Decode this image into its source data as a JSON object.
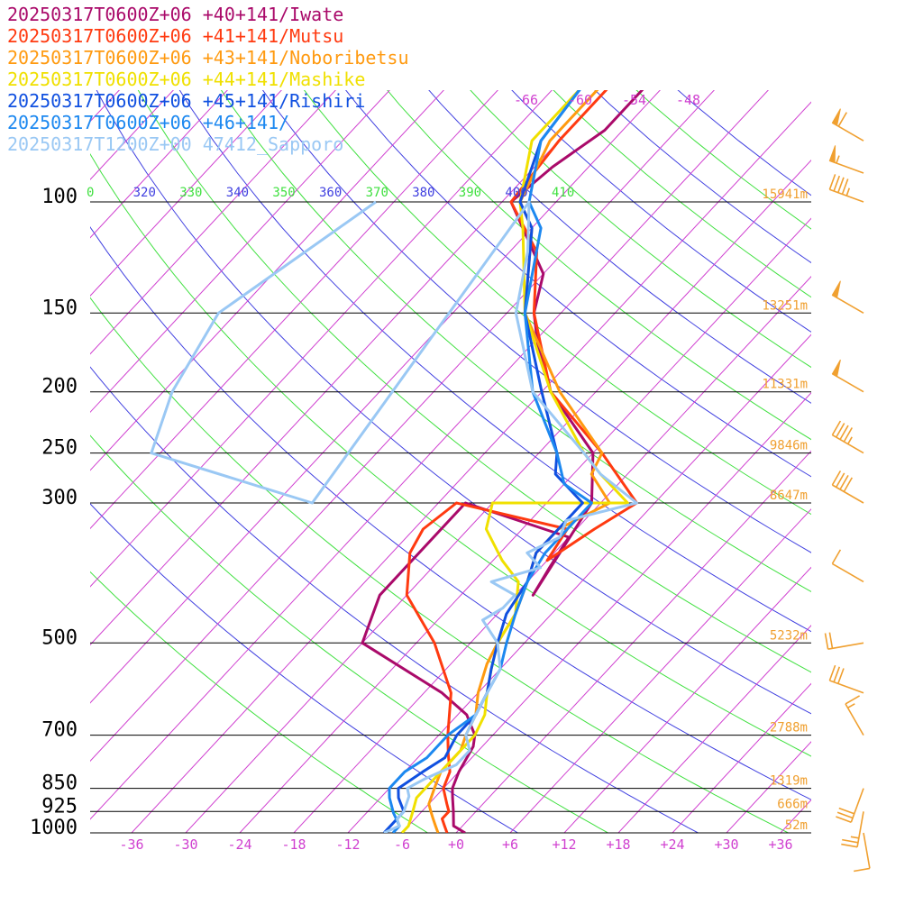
{
  "legend": [
    {
      "label": "20250317T0600Z+06 +40+141/Iwate",
      "color": "#aa0a6a"
    },
    {
      "label": "20250317T0600Z+06 +41+141/Mutsu",
      "color": "#ff3a10"
    },
    {
      "label": "20250317T0600Z+06 +43+141/Noboribetsu",
      "color": "#ff9a10"
    },
    {
      "label": "20250317T0600Z+06 +44+141/Mashike",
      "color": "#f0e000"
    },
    {
      "label": "20250317T0600Z+06 +45+141/Rishiri",
      "color": "#1050e0"
    },
    {
      "label": "20250317T0600Z+06 +46+141/",
      "color": "#1c88f0"
    },
    {
      "label": "20250317T1200Z+00 47412_Sapporo",
      "color": "#9ac8f4"
    }
  ],
  "chart_data": {
    "type": "line",
    "pressure_levels": [
      100,
      150,
      200,
      250,
      300,
      500,
      700,
      850,
      925,
      1000
    ],
    "height_labels": [
      {
        "p": 100,
        "label": "15941m"
      },
      {
        "p": 150,
        "label": "13251m"
      },
      {
        "p": 200,
        "label": "11331m"
      },
      {
        "p": 250,
        "label": "9846m"
      },
      {
        "p": 300,
        "label": "8647m"
      },
      {
        "p": 500,
        "label": "5232m"
      },
      {
        "p": 700,
        "label": "2788m"
      },
      {
        "p": 850,
        "label": "1319m"
      },
      {
        "p": 925,
        "label": "666m"
      },
      {
        "p": 1000,
        "label": "52m"
      }
    ],
    "temp_ticks": [
      "-36",
      "-30",
      "-24",
      "-18",
      "-12",
      "-6",
      "+0",
      "+6",
      "+12",
      "+18",
      "+24",
      "+30",
      "+36"
    ],
    "isotherm_top_labels": [
      "-66",
      "-60",
      "-54",
      "-48"
    ],
    "theta_labels": [
      {
        "value": "0",
        "color": "#40e040"
      },
      {
        "value": "320",
        "color": "#4040e0"
      },
      {
        "value": "330",
        "color": "#40e040"
      },
      {
        "value": "340",
        "color": "#4040e0"
      },
      {
        "value": "350",
        "color": "#40e040"
      },
      {
        "value": "360",
        "color": "#4040e0"
      },
      {
        "value": "370",
        "color": "#40e040"
      },
      {
        "value": "380",
        "color": "#4040e0"
      },
      {
        "value": "390",
        "color": "#40e040"
      },
      {
        "value": "400",
        "color": "#4040e0"
      },
      {
        "value": "410",
        "color": "#40e040"
      }
    ],
    "xlim": [
      -40,
      40
    ],
    "series": [
      {
        "color": "#aa0a6a",
        "points": [
          [
            1000,
            1
          ],
          [
            975,
            -1
          ],
          [
            925,
            -2.5
          ],
          [
            880,
            -4
          ],
          [
            850,
            -5
          ],
          [
            800,
            -6
          ],
          [
            730,
            -7
          ],
          [
            700,
            -8
          ],
          [
            650,
            -11
          ],
          [
            600,
            -16
          ],
          [
            500,
            -30
          ],
          [
            420,
            -33
          ],
          [
            380,
            -33
          ],
          [
            300,
            -33
          ],
          [
            340,
            -18
          ],
          [
            380,
            -17
          ],
          [
            420,
            -16
          ],
          [
            300,
            -19
          ],
          [
            250,
            -24
          ],
          [
            200,
            -35
          ],
          [
            170,
            -41
          ],
          [
            150,
            -45
          ],
          [
            130,
            -48
          ],
          [
            100,
            -59
          ],
          [
            88,
            -58
          ],
          [
            77,
            -56
          ],
          [
            65,
            -56
          ]
        ]
      },
      {
        "color": "#ff3a10",
        "points": [
          [
            1000,
            -1
          ],
          [
            975,
            -2
          ],
          [
            950,
            -3
          ],
          [
            925,
            -3
          ],
          [
            900,
            -4
          ],
          [
            850,
            -6
          ],
          [
            800,
            -7
          ],
          [
            750,
            -9
          ],
          [
            700,
            -11
          ],
          [
            600,
            -15
          ],
          [
            500,
            -22
          ],
          [
            420,
            -30
          ],
          [
            360,
            -34
          ],
          [
            330,
            -35
          ],
          [
            300,
            -34
          ],
          [
            330,
            -19
          ],
          [
            370,
            -18
          ],
          [
            330,
            -16
          ],
          [
            300,
            -14
          ],
          [
            250,
            -23
          ],
          [
            200,
            -35
          ],
          [
            150,
            -45
          ],
          [
            120,
            -51
          ],
          [
            100,
            -59
          ],
          [
            80,
            -60
          ],
          [
            66,
            -60
          ]
        ]
      },
      {
        "color": "#ff9a10",
        "points": [
          [
            1000,
            -2
          ],
          [
            975,
            -3
          ],
          [
            950,
            -4
          ],
          [
            925,
            -5
          ],
          [
            900,
            -6
          ],
          [
            850,
            -7
          ],
          [
            800,
            -8
          ],
          [
            740,
            -8
          ],
          [
            700,
            -9
          ],
          [
            650,
            -10
          ],
          [
            600,
            -12
          ],
          [
            540,
            -14
          ],
          [
            500,
            -15
          ],
          [
            450,
            -16
          ],
          [
            400,
            -18
          ],
          [
            360,
            -20
          ],
          [
            330,
            -20
          ],
          [
            300,
            -17
          ],
          [
            270,
            -22
          ],
          [
            250,
            -23
          ],
          [
            200,
            -34
          ],
          [
            150,
            -46
          ],
          [
            110,
            -54
          ],
          [
            100,
            -58
          ],
          [
            80,
            -61
          ],
          [
            66,
            -61
          ]
        ]
      },
      {
        "color": "#f0e000",
        "points": [
          [
            1000,
            -6
          ],
          [
            975,
            -6
          ],
          [
            925,
            -7
          ],
          [
            880,
            -8
          ],
          [
            850,
            -8
          ],
          [
            800,
            -8
          ],
          [
            740,
            -8
          ],
          [
            700,
            -8
          ],
          [
            650,
            -9
          ],
          [
            600,
            -11
          ],
          [
            550,
            -13
          ],
          [
            500,
            -15
          ],
          [
            450,
            -16
          ],
          [
            400,
            -19
          ],
          [
            370,
            -23
          ],
          [
            330,
            -28
          ],
          [
            300,
            -30
          ],
          [
            300,
            -15
          ],
          [
            270,
            -21
          ],
          [
            250,
            -25
          ],
          [
            200,
            -35
          ],
          [
            150,
            -46
          ],
          [
            110,
            -55
          ],
          [
            100,
            -58
          ],
          [
            80,
            -63
          ],
          [
            66,
            -63
          ]
        ]
      },
      {
        "color": "#1050e0",
        "points": [
          [
            1000,
            -8
          ],
          [
            975,
            -8
          ],
          [
            925,
            -8
          ],
          [
            880,
            -10
          ],
          [
            850,
            -11
          ],
          [
            800,
            -10
          ],
          [
            760,
            -9
          ],
          [
            700,
            -10
          ],
          [
            650,
            -10
          ],
          [
            600,
            -11
          ],
          [
            550,
            -13
          ],
          [
            500,
            -15
          ],
          [
            450,
            -17
          ],
          [
            400,
            -18
          ],
          [
            360,
            -20
          ],
          [
            330,
            -20
          ],
          [
            300,
            -20
          ],
          [
            270,
            -26
          ],
          [
            250,
            -28
          ],
          [
            200,
            -36
          ],
          [
            150,
            -46
          ],
          [
            110,
            -54
          ],
          [
            100,
            -58
          ],
          [
            80,
            -62
          ],
          [
            66,
            -63
          ]
        ]
      },
      {
        "color": "#1c88f0",
        "points": [
          [
            1000,
            -7
          ],
          [
            975,
            -7
          ],
          [
            930,
            -9
          ],
          [
            880,
            -11
          ],
          [
            850,
            -12
          ],
          [
            800,
            -12
          ],
          [
            760,
            -11
          ],
          [
            700,
            -11
          ],
          [
            650,
            -10
          ],
          [
            600,
            -11
          ],
          [
            550,
            -12
          ],
          [
            500,
            -14
          ],
          [
            450,
            -16
          ],
          [
            400,
            -18
          ],
          [
            360,
            -19
          ],
          [
            330,
            -19
          ],
          [
            300,
            -19
          ],
          [
            280,
            -24
          ],
          [
            250,
            -28
          ],
          [
            200,
            -37
          ],
          [
            150,
            -46
          ],
          [
            110,
            -53
          ],
          [
            100,
            -57
          ],
          [
            80,
            -62
          ],
          [
            66,
            -63
          ]
        ]
      },
      {
        "color": "#9ac8f4",
        "points": [
          [
            1000,
            -8
          ],
          [
            975,
            -7
          ],
          [
            950,
            -8
          ],
          [
            925,
            -8
          ],
          [
            875,
            -9
          ],
          [
            850,
            -10
          ],
          [
            820,
            -9
          ],
          [
            780,
            -7
          ],
          [
            740,
            -7
          ],
          [
            700,
            -9
          ],
          [
            650,
            -10
          ],
          [
            600,
            -11
          ],
          [
            550,
            -12
          ],
          [
            500,
            -15
          ],
          [
            460,
            -19
          ],
          [
            440,
            -18
          ],
          [
            420,
            -18
          ],
          [
            400,
            -22
          ],
          [
            380,
            -18
          ],
          [
            360,
            -21
          ],
          [
            340,
            -19
          ],
          [
            320,
            -20
          ],
          [
            300,
            -14
          ],
          [
            270,
            -21
          ],
          [
            250,
            -25
          ],
          [
            200,
            -37
          ],
          [
            150,
            -47
          ],
          [
            120,
            -52
          ],
          [
            100,
            -57
          ],
          [
            300,
            -50
          ],
          [
            250,
            -73
          ],
          [
            200,
            -77
          ],
          [
            150,
            -80
          ],
          [
            100,
            -74
          ]
        ]
      }
    ],
    "wind_barbs": [
      {
        "p": 80,
        "dir": 300,
        "speed": 60
      },
      {
        "p": 90,
        "dir": 290,
        "speed": 55
      },
      {
        "p": 100,
        "dir": 290,
        "speed": 45
      },
      {
        "p": 150,
        "dir": 300,
        "speed": 50
      },
      {
        "p": 200,
        "dir": 300,
        "speed": 50
      },
      {
        "p": 250,
        "dir": 300,
        "speed": 45
      },
      {
        "p": 300,
        "dir": 300,
        "speed": 40
      },
      {
        "p": 400,
        "dir": 300,
        "speed": 10
      },
      {
        "p": 500,
        "dir": 260,
        "speed": 20
      },
      {
        "p": 600,
        "dir": 290,
        "speed": 30
      },
      {
        "p": 700,
        "dir": 330,
        "speed": 15
      },
      {
        "p": 850,
        "dir": 200,
        "speed": 30
      },
      {
        "p": 925,
        "dir": 190,
        "speed": 25
      },
      {
        "p": 1000,
        "dir": 170,
        "speed": 10
      }
    ]
  }
}
